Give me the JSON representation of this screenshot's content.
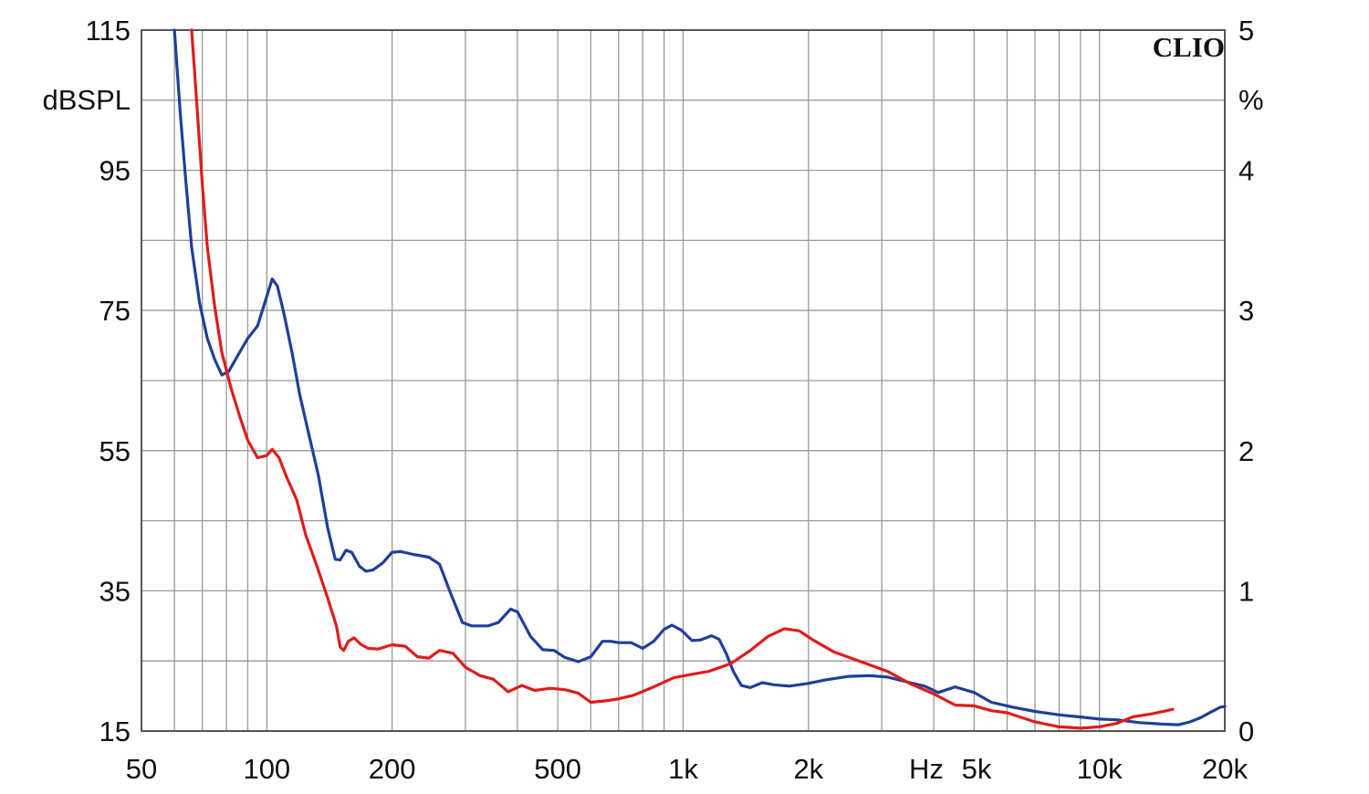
{
  "chart_data": {
    "type": "line",
    "xscale": "log",
    "xlim": [
      50,
      20000
    ],
    "ylim_left": [
      15,
      115
    ],
    "ylim_right": [
      0,
      5
    ],
    "grid": true,
    "brand": "CLIO",
    "left_unit": "dBSPL",
    "right_unit": "%",
    "x_unit": "Hz",
    "x_ticks": [
      {
        "label": "50",
        "value": 50
      },
      {
        "label": "100",
        "value": 100
      },
      {
        "label": "200",
        "value": 200
      },
      {
        "label": "500",
        "value": 500
      },
      {
        "label": "1k",
        "value": 1000
      },
      {
        "label": "2k",
        "value": 2000
      },
      {
        "label": "5k",
        "value": 5000
      },
      {
        "label": "10k",
        "value": 10000
      },
      {
        "label": "20k",
        "value": 20000
      }
    ],
    "y_left_ticks": [
      "115",
      "95",
      "75",
      "55",
      "35",
      "15"
    ],
    "y_right_ticks": [
      "5",
      "4",
      "3",
      "2",
      "1",
      "0"
    ],
    "colors": {
      "blue": "#1f3f9a",
      "red": "#e01b1b",
      "grid": "#9a9a9a",
      "axis": "#555555"
    },
    "series": [
      {
        "color": "blue",
        "axis": "left",
        "points": [
          [
            60,
            115
          ],
          [
            62,
            103
          ],
          [
            64,
            93
          ],
          [
            66,
            84
          ],
          [
            69,
            76
          ],
          [
            72,
            71
          ],
          [
            75,
            68
          ],
          [
            78,
            65.8
          ],
          [
            81,
            66.3
          ],
          [
            86,
            69
          ],
          [
            90,
            71
          ],
          [
            95,
            72.8
          ],
          [
            100,
            77
          ],
          [
            103,
            79.5
          ],
          [
            106,
            78.5
          ],
          [
            110,
            74.5
          ],
          [
            115,
            69
          ],
          [
            120,
            63
          ],
          [
            126,
            57.5
          ],
          [
            133,
            51.5
          ],
          [
            140,
            44
          ],
          [
            146,
            39.5
          ],
          [
            150,
            39.4
          ],
          [
            155,
            40.8
          ],
          [
            160,
            40.5
          ],
          [
            167,
            38.5
          ],
          [
            173,
            37.8
          ],
          [
            180,
            38
          ],
          [
            190,
            39
          ],
          [
            200,
            40.5
          ],
          [
            210,
            40.6
          ],
          [
            225,
            40.2
          ],
          [
            245,
            39.8
          ],
          [
            260,
            38.8
          ],
          [
            275,
            35
          ],
          [
            295,
            30.5
          ],
          [
            310,
            30
          ],
          [
            340,
            30
          ],
          [
            360,
            30.5
          ],
          [
            385,
            32.4
          ],
          [
            400,
            32
          ],
          [
            430,
            28.5
          ],
          [
            460,
            26.6
          ],
          [
            490,
            26.5
          ],
          [
            520,
            25.5
          ],
          [
            560,
            24.9
          ],
          [
            600,
            25.6
          ],
          [
            640,
            27.8
          ],
          [
            670,
            27.8
          ],
          [
            700,
            27.6
          ],
          [
            750,
            27.6
          ],
          [
            800,
            26.8
          ],
          [
            850,
            27.8
          ],
          [
            900,
            29.5
          ],
          [
            940,
            30.1
          ],
          [
            990,
            29.4
          ],
          [
            1050,
            27.9
          ],
          [
            1100,
            28
          ],
          [
            1170,
            28.6
          ],
          [
            1220,
            28.1
          ],
          [
            1270,
            26
          ],
          [
            1320,
            23.5
          ],
          [
            1380,
            21.5
          ],
          [
            1450,
            21.2
          ],
          [
            1550,
            21.9
          ],
          [
            1650,
            21.6
          ],
          [
            1800,
            21.4
          ],
          [
            2000,
            21.8
          ],
          [
            2200,
            22.3
          ],
          [
            2500,
            22.8
          ],
          [
            2800,
            22.9
          ],
          [
            3100,
            22.7
          ],
          [
            3400,
            22.1
          ],
          [
            3800,
            21.4
          ],
          [
            4100,
            20.5
          ],
          [
            4500,
            21.3
          ],
          [
            5000,
            20.5
          ],
          [
            5500,
            19.1
          ],
          [
            6200,
            18.4
          ],
          [
            7000,
            17.8
          ],
          [
            8000,
            17.3
          ],
          [
            9000,
            17
          ],
          [
            10000,
            16.7
          ],
          [
            11000,
            16.6
          ],
          [
            12500,
            16.2
          ],
          [
            14000,
            16
          ],
          [
            15500,
            15.9
          ],
          [
            16500,
            16.3
          ],
          [
            17500,
            16.9
          ],
          [
            18500,
            17.7
          ],
          [
            19500,
            18.4
          ],
          [
            20000,
            18.5
          ]
        ]
      },
      {
        "color": "red",
        "axis": "left",
        "points": [
          [
            66,
            115
          ],
          [
            68,
            104
          ],
          [
            70,
            93
          ],
          [
            72,
            84
          ],
          [
            75,
            75.5
          ],
          [
            78,
            69
          ],
          [
            82,
            64
          ],
          [
            86,
            60
          ],
          [
            90,
            56.5
          ],
          [
            95,
            54
          ],
          [
            100,
            54.3
          ],
          [
            103,
            55.2
          ],
          [
            107,
            54
          ],
          [
            112,
            51
          ],
          [
            118,
            48
          ],
          [
            124,
            43
          ],
          [
            132,
            38.5
          ],
          [
            140,
            34
          ],
          [
            147,
            30
          ],
          [
            150,
            27
          ],
          [
            153,
            26.5
          ],
          [
            157,
            27.8
          ],
          [
            162,
            28.3
          ],
          [
            168,
            27.4
          ],
          [
            175,
            26.8
          ],
          [
            185,
            26.7
          ],
          [
            200,
            27.3
          ],
          [
            215,
            27.1
          ],
          [
            230,
            25.6
          ],
          [
            245,
            25.4
          ],
          [
            260,
            26.5
          ],
          [
            280,
            26.1
          ],
          [
            300,
            24.1
          ],
          [
            325,
            22.9
          ],
          [
            350,
            22.4
          ],
          [
            380,
            20.6
          ],
          [
            410,
            21.5
          ],
          [
            440,
            20.8
          ],
          [
            480,
            21.1
          ],
          [
            520,
            20.9
          ],
          [
            560,
            20.4
          ],
          [
            600,
            19.1
          ],
          [
            650,
            19.3
          ],
          [
            700,
            19.6
          ],
          [
            760,
            20.1
          ],
          [
            850,
            21.3
          ],
          [
            950,
            22.6
          ],
          [
            1050,
            23.1
          ],
          [
            1150,
            23.5
          ],
          [
            1300,
            24.6
          ],
          [
            1450,
            26.5
          ],
          [
            1600,
            28.5
          ],
          [
            1750,
            29.6
          ],
          [
            1900,
            29.3
          ],
          [
            2050,
            28
          ],
          [
            2300,
            26.3
          ],
          [
            2700,
            24.8
          ],
          [
            3100,
            23.5
          ],
          [
            3500,
            21.8
          ],
          [
            4000,
            20.3
          ],
          [
            4500,
            18.7
          ],
          [
            5000,
            18.6
          ],
          [
            5500,
            17.9
          ],
          [
            6000,
            17.6
          ],
          [
            7000,
            16.3
          ],
          [
            8000,
            15.6
          ],
          [
            9000,
            15.4
          ],
          [
            10000,
            15.6
          ],
          [
            11000,
            16.1
          ],
          [
            12000,
            17
          ],
          [
            13500,
            17.5
          ],
          [
            14500,
            17.9
          ],
          [
            15000,
            18.1
          ]
        ]
      }
    ]
  }
}
